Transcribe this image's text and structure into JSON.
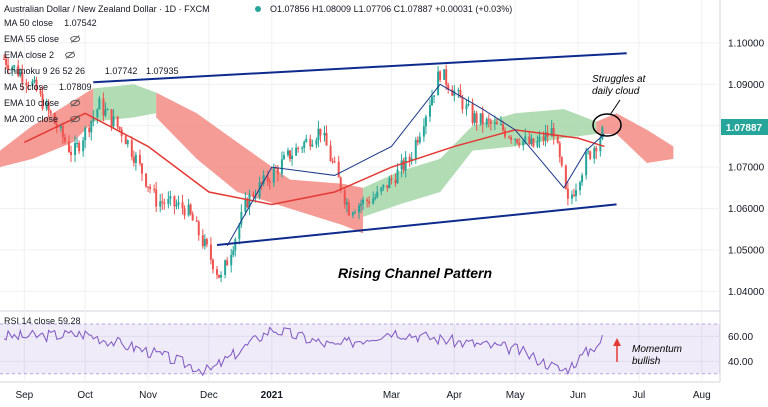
{
  "header": {
    "title": "Australian Dollar / New Zealand Dollar · 1D · FXCM",
    "ohlc": "O1.07856 H1.08009 L1.07706 C1.07887 +0.00031 (+0.03%)"
  },
  "indicators": [
    {
      "name": "MA 50 close",
      "value": "1.07542",
      "color": "#e53935"
    },
    {
      "name": "EMA 55 close",
      "value": "",
      "color": "#9e9e9e"
    },
    {
      "name": "EMA close 2",
      "value": "",
      "color": "#9e9e9e"
    },
    {
      "name": "Ichimoku 9 26 52 26",
      "value": "1.07742",
      "value2": "1.07935",
      "color": "#43a047",
      "color2": "#e53935"
    },
    {
      "name": "MA 5 close",
      "value": "1.07809",
      "color": "#1e3a8a"
    },
    {
      "name": "EMA 10 close",
      "value": "",
      "color": "#9e9e9e"
    },
    {
      "name": "MA 200 close",
      "value": "",
      "color": "#9e9e9e"
    }
  ],
  "rsi": {
    "label": "RSI 14 close",
    "value": "59.28",
    "color": "#7e57c2"
  },
  "annotations": {
    "channel": "Rising Channel Pattern",
    "cloud_line1": "Struggles at",
    "cloud_line2": "daily cloud",
    "mom_line1": "Momentum",
    "mom_line2": "bullish"
  },
  "price_label": "1.07887",
  "colors": {
    "up": "#26a69a",
    "down": "#ef5350",
    "channel": "#0d2b8c",
    "cloud_bull": "#a5d6a7",
    "cloud_bear": "#f28b82"
  },
  "chart_data": {
    "type": "line",
    "title": "Australian Dollar / New Zealand Dollar · 1D · FXCM",
    "x_ticks": [
      "Sep",
      "Oct",
      "Nov",
      "Dec",
      "2021",
      "Mar",
      "Apr",
      "May",
      "Jun",
      "Jul",
      "Aug"
    ],
    "y_ticks": [
      "1.04000",
      "1.05000",
      "1.06000",
      "1.07000",
      "1.08000",
      "1.09000",
      "1.10000"
    ],
    "ylim": [
      1.036,
      1.106
    ],
    "rsi_ticks": [
      "40.00",
      "60.00"
    ],
    "rsi_ylim": [
      25,
      78
    ],
    "series": [
      {
        "name": "MA 50 close",
        "x": [
          "2020-09-01",
          "2020-10-01",
          "2020-11-01",
          "2020-12-01",
          "2021-01-01",
          "2021-02-01",
          "2021-03-01",
          "2021-04-01",
          "2021-05-01",
          "2021-06-01",
          "2021-06-14"
        ],
        "values": [
          1.076,
          1.083,
          1.075,
          1.064,
          1.061,
          1.064,
          1.07,
          1.075,
          1.079,
          1.077,
          1.075
        ]
      },
      {
        "name": "MA 5 close",
        "x": [
          "2020-12-10",
          "2021-01-01",
          "2021-02-01",
          "2021-03-01",
          "2021-03-25",
          "2021-04-15",
          "2021-05-01",
          "2021-05-25",
          "2021-06-05",
          "2021-06-14"
        ],
        "values": [
          1.051,
          1.07,
          1.068,
          1.075,
          1.09,
          1.084,
          1.079,
          1.065,
          1.074,
          1.078
        ]
      },
      {
        "name": "RSI 14 close",
        "x": [
          "2020-09-01",
          "2020-10-01",
          "2020-11-01",
          "2020-12-01",
          "2021-01-01",
          "2021-02-01",
          "2021-03-01",
          "2021-04-01",
          "2021-05-01",
          "2021-05-25",
          "2021-06-14"
        ],
        "values": [
          60,
          62,
          48,
          32,
          66,
          52,
          64,
          56,
          50,
          32,
          59
        ]
      }
    ],
    "channel_lines": [
      {
        "name": "upper",
        "x": [
          "2020-10-05",
          "2021-06-25"
        ],
        "values": [
          1.0905,
          1.0975
        ]
      },
      {
        "name": "lower",
        "x": [
          "2020-12-05",
          "2021-06-20"
        ],
        "values": [
          1.0512,
          1.061
        ]
      }
    ],
    "legend": "top-left",
    "grid": true
  }
}
